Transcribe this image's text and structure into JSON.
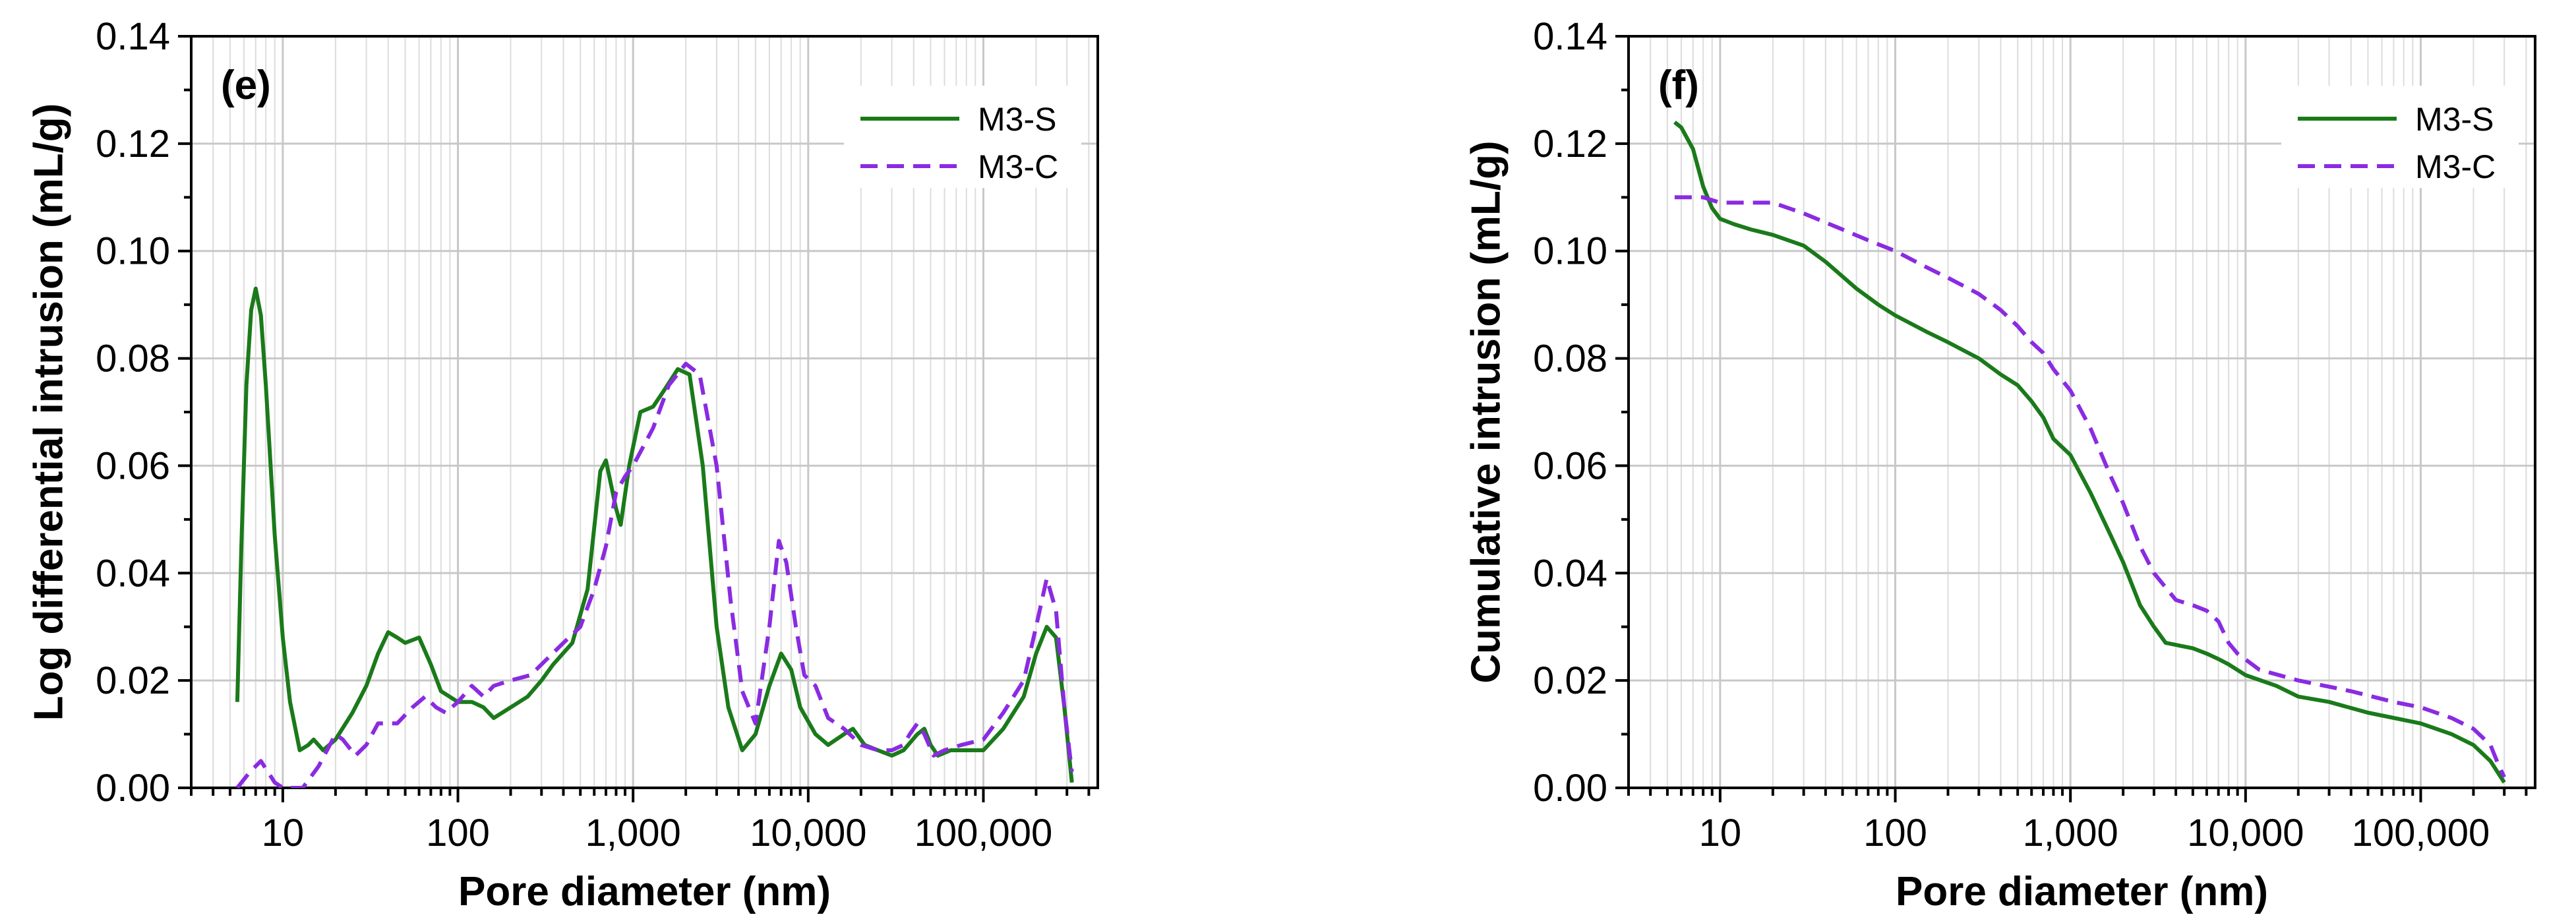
{
  "chart_data": [
    {
      "type": "line",
      "panel_label": "(e)",
      "xlabel": "Pore diameter (nm)",
      "ylabel": "Log differential intrusion (mL/g)",
      "x_scale": "log",
      "xlim": [
        3,
        450000
      ],
      "ylim": [
        0,
        0.14
      ],
      "x_ticks": [
        10,
        100,
        1000,
        10000,
        100000
      ],
      "x_tick_labels": [
        "10",
        "100",
        "1,000",
        "10,000",
        "100,000"
      ],
      "y_ticks": [
        0,
        0.02,
        0.04,
        0.06,
        0.08,
        0.1,
        0.12,
        0.14
      ],
      "y_tick_labels": [
        "0.00",
        "0.02",
        "0.04",
        "0.06",
        "0.08",
        "0.10",
        "0.12",
        "0.14"
      ],
      "grid": true,
      "legend_position": "top-right",
      "series": [
        {
          "name": "M3-S",
          "color": "#1a7a1a",
          "dash": "solid",
          "points": [
            [
              5.5,
              0.016
            ],
            [
              5.8,
              0.045
            ],
            [
              6.2,
              0.075
            ],
            [
              6.6,
              0.089
            ],
            [
              7,
              0.093
            ],
            [
              7.5,
              0.088
            ],
            [
              8,
              0.075
            ],
            [
              9,
              0.047
            ],
            [
              10,
              0.028
            ],
            [
              11,
              0.016
            ],
            [
              12.5,
              0.007
            ],
            [
              14,
              0.008
            ],
            [
              15,
              0.009
            ],
            [
              17,
              0.007
            ],
            [
              20,
              0.009
            ],
            [
              25,
              0.014
            ],
            [
              30,
              0.019
            ],
            [
              35,
              0.025
            ],
            [
              40,
              0.029
            ],
            [
              45,
              0.028
            ],
            [
              50,
              0.027
            ],
            [
              60,
              0.028
            ],
            [
              70,
              0.023
            ],
            [
              80,
              0.018
            ],
            [
              100,
              0.016
            ],
            [
              120,
              0.016
            ],
            [
              140,
              0.015
            ],
            [
              160,
              0.013
            ],
            [
              200,
              0.015
            ],
            [
              250,
              0.017
            ],
            [
              300,
              0.02
            ],
            [
              350,
              0.023
            ],
            [
              450,
              0.027
            ],
            [
              550,
              0.037
            ],
            [
              650,
              0.059
            ],
            [
              700,
              0.061
            ],
            [
              800,
              0.052
            ],
            [
              850,
              0.049
            ],
            [
              950,
              0.06
            ],
            [
              1100,
              0.07
            ],
            [
              1300,
              0.071
            ],
            [
              1500,
              0.074
            ],
            [
              1800,
              0.078
            ],
            [
              2100,
              0.077
            ],
            [
              2500,
              0.06
            ],
            [
              3000,
              0.03
            ],
            [
              3500,
              0.015
            ],
            [
              4200,
              0.007
            ],
            [
              5000,
              0.01
            ],
            [
              6000,
              0.019
            ],
            [
              7000,
              0.025
            ],
            [
              8000,
              0.022
            ],
            [
              9000,
              0.015
            ],
            [
              11000,
              0.01
            ],
            [
              13000,
              0.008
            ],
            [
              16000,
              0.01
            ],
            [
              18000,
              0.011
            ],
            [
              21000,
              0.008
            ],
            [
              25000,
              0.007
            ],
            [
              30000,
              0.006
            ],
            [
              35000,
              0.007
            ],
            [
              42000,
              0.01
            ],
            [
              46000,
              0.011
            ],
            [
              50000,
              0.008
            ],
            [
              55000,
              0.006
            ],
            [
              65000,
              0.007
            ],
            [
              80000,
              0.007
            ],
            [
              100000,
              0.007
            ],
            [
              130000,
              0.011
            ],
            [
              170000,
              0.017
            ],
            [
              200000,
              0.025
            ],
            [
              230000,
              0.03
            ],
            [
              260000,
              0.028
            ],
            [
              290000,
              0.015
            ],
            [
              320000,
              0.001
            ]
          ]
        },
        {
          "name": "M3-C",
          "color": "#8a2be2",
          "dash": "dashed",
          "points": [
            [
              5.5,
              0
            ],
            [
              6.5,
              0.003
            ],
            [
              7.5,
              0.005
            ],
            [
              9,
              0.001
            ],
            [
              10,
              0
            ],
            [
              13,
              0
            ],
            [
              16,
              0.004
            ],
            [
              20,
              0.01
            ],
            [
              22,
              0.009
            ],
            [
              26,
              0.006
            ],
            [
              30,
              0.008
            ],
            [
              35,
              0.012
            ],
            [
              45,
              0.012
            ],
            [
              55,
              0.015
            ],
            [
              65,
              0.017
            ],
            [
              75,
              0.015
            ],
            [
              85,
              0.014
            ],
            [
              100,
              0.016
            ],
            [
              120,
              0.019
            ],
            [
              140,
              0.017
            ],
            [
              160,
              0.019
            ],
            [
              200,
              0.02
            ],
            [
              260,
              0.021
            ],
            [
              300,
              0.023
            ],
            [
              400,
              0.027
            ],
            [
              500,
              0.03
            ],
            [
              600,
              0.037
            ],
            [
              700,
              0.045
            ],
            [
              800,
              0.055
            ],
            [
              900,
              0.058
            ],
            [
              1000,
              0.06
            ],
            [
              1300,
              0.067
            ],
            [
              1600,
              0.075
            ],
            [
              2000,
              0.079
            ],
            [
              2400,
              0.077
            ],
            [
              3000,
              0.06
            ],
            [
              3600,
              0.035
            ],
            [
              4200,
              0.018
            ],
            [
              5000,
              0.012
            ],
            [
              6000,
              0.03
            ],
            [
              6800,
              0.046
            ],
            [
              7500,
              0.042
            ],
            [
              8500,
              0.03
            ],
            [
              9500,
              0.021
            ],
            [
              11000,
              0.019
            ],
            [
              13000,
              0.013
            ],
            [
              16000,
              0.011
            ],
            [
              20000,
              0.008
            ],
            [
              25000,
              0.007
            ],
            [
              30000,
              0.007
            ],
            [
              35000,
              0.008
            ],
            [
              38000,
              0.01
            ],
            [
              42000,
              0.012
            ],
            [
              46000,
              0.01
            ],
            [
              52000,
              0.006
            ],
            [
              60000,
              0.007
            ],
            [
              75000,
              0.008
            ],
            [
              100000,
              0.009
            ],
            [
              130000,
              0.014
            ],
            [
              170000,
              0.02
            ],
            [
              200000,
              0.03
            ],
            [
              230000,
              0.039
            ],
            [
              260000,
              0.033
            ],
            [
              290000,
              0.015
            ],
            [
              320000,
              0.003
            ]
          ]
        }
      ]
    },
    {
      "type": "line",
      "panel_label": "(f)",
      "xlabel": "Pore diameter (nm)",
      "ylabel": "Cumulative intrusion (mL/g)",
      "x_scale": "log",
      "xlim": [
        3,
        450000
      ],
      "ylim": [
        0,
        0.14
      ],
      "x_ticks": [
        10,
        100,
        1000,
        10000,
        100000
      ],
      "x_tick_labels": [
        "10",
        "100",
        "1,000",
        "10,000",
        "100,000"
      ],
      "y_ticks": [
        0,
        0.02,
        0.04,
        0.06,
        0.08,
        0.1,
        0.12,
        0.14
      ],
      "y_tick_labels": [
        "0.00",
        "0.02",
        "0.04",
        "0.06",
        "0.08",
        "0.10",
        "0.12",
        "0.14"
      ],
      "grid": true,
      "legend_position": "top-right",
      "series": [
        {
          "name": "M3-S",
          "color": "#1a7a1a",
          "dash": "solid",
          "points": [
            [
              5.5,
              0.124
            ],
            [
              6,
              0.123
            ],
            [
              7,
              0.119
            ],
            [
              8,
              0.112
            ],
            [
              9,
              0.108
            ],
            [
              10,
              0.106
            ],
            [
              12,
              0.105
            ],
            [
              15,
              0.104
            ],
            [
              20,
              0.103
            ],
            [
              30,
              0.101
            ],
            [
              40,
              0.098
            ],
            [
              60,
              0.093
            ],
            [
              80,
              0.09
            ],
            [
              100,
              0.088
            ],
            [
              150,
              0.085
            ],
            [
              200,
              0.083
            ],
            [
              300,
              0.08
            ],
            [
              400,
              0.077
            ],
            [
              500,
              0.075
            ],
            [
              600,
              0.072
            ],
            [
              700,
              0.069
            ],
            [
              800,
              0.065
            ],
            [
              1000,
              0.062
            ],
            [
              1300,
              0.055
            ],
            [
              1700,
              0.047
            ],
            [
              2000,
              0.042
            ],
            [
              2500,
              0.034
            ],
            [
              3000,
              0.03
            ],
            [
              3500,
              0.027
            ],
            [
              5000,
              0.026
            ],
            [
              6000,
              0.025
            ],
            [
              7000,
              0.024
            ],
            [
              8000,
              0.023
            ],
            [
              10000,
              0.021
            ],
            [
              15000,
              0.019
            ],
            [
              20000,
              0.017
            ],
            [
              30000,
              0.016
            ],
            [
              50000,
              0.014
            ],
            [
              100000,
              0.012
            ],
            [
              150000,
              0.01
            ],
            [
              200000,
              0.008
            ],
            [
              250000,
              0.005
            ],
            [
              300000,
              0.001
            ]
          ]
        },
        {
          "name": "M3-C",
          "color": "#8a2be2",
          "dash": "dashed",
          "points": [
            [
              5.5,
              0.11
            ],
            [
              8,
              0.11
            ],
            [
              10,
              0.109
            ],
            [
              15,
              0.109
            ],
            [
              20,
              0.109
            ],
            [
              30,
              0.107
            ],
            [
              50,
              0.104
            ],
            [
              70,
              0.102
            ],
            [
              100,
              0.1
            ],
            [
              150,
              0.097
            ],
            [
              200,
              0.095
            ],
            [
              300,
              0.092
            ],
            [
              400,
              0.089
            ],
            [
              500,
              0.086
            ],
            [
              600,
              0.083
            ],
            [
              700,
              0.081
            ],
            [
              800,
              0.078
            ],
            [
              1000,
              0.074
            ],
            [
              1300,
              0.067
            ],
            [
              1700,
              0.058
            ],
            [
              2000,
              0.053
            ],
            [
              2500,
              0.045
            ],
            [
              3000,
              0.04
            ],
            [
              4000,
              0.035
            ],
            [
              5000,
              0.034
            ],
            [
              6000,
              0.033
            ],
            [
              7000,
              0.031
            ],
            [
              8000,
              0.027
            ],
            [
              9000,
              0.025
            ],
            [
              12000,
              0.022
            ],
            [
              20000,
              0.02
            ],
            [
              40000,
              0.018
            ],
            [
              70000,
              0.016
            ],
            [
              100000,
              0.015
            ],
            [
              150000,
              0.013
            ],
            [
              200000,
              0.011
            ],
            [
              250000,
              0.008
            ],
            [
              280000,
              0.004
            ],
            [
              300000,
              0.002
            ]
          ]
        }
      ]
    }
  ]
}
